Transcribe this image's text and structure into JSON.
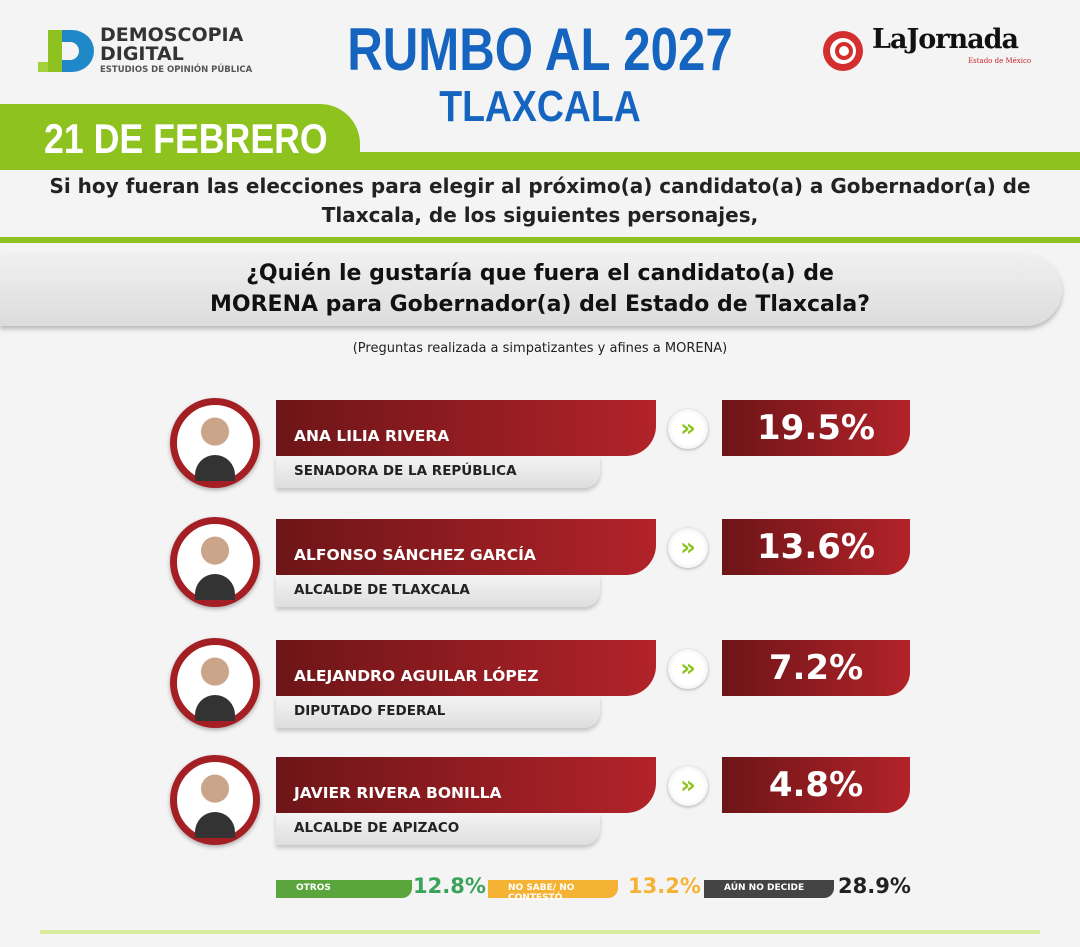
{
  "header": {
    "brand_line1": "DEMOSCOPIA",
    "brand_line2": "DIGITAL",
    "brand_tagline": "ESTUDIOS DE OPINIÓN PÚBLICA",
    "title": "RUMBO AL 2027",
    "subtitle": "TLAXCALA",
    "date": "21 DE FEBRERO",
    "partner_logo": "LaJornada",
    "partner_sub": "Estado de México"
  },
  "intro": "Si hoy fueran las elecciones para elegir al próximo(a) candidato(a) a Gobernador(a) de Tlaxcala, de los siguientes personajes,",
  "question": "¿Quién le gustaría que fuera el candidato(a) de MORENA para Gobernador(a) del Estado de Tlaxcala?",
  "note": "(Preguntas realizada a simpatizantes y afines a MORENA)",
  "colors": {
    "accent_green": "#8dc21f",
    "title_blue": "#1565c0",
    "bar_red": "#b22329"
  },
  "chart_data": {
    "type": "table",
    "categories": [
      "ANA LILIA RIVERA",
      "ALFONSO SÁNCHEZ GARCÍA",
      "ALEJANDRO AGUILAR LÓPEZ",
      "JAVIER RIVERA BONILLA"
    ],
    "roles": [
      "SENADORA DE LA REPÚBLICA",
      "ALCALDE DE TLAXCALA",
      "DIPUTADO FEDERAL",
      "ALCALDE DE APIZACO"
    ],
    "values": [
      19.5,
      13.6,
      7.2,
      4.8
    ],
    "labels": [
      "19.5%",
      "13.6%",
      "7.2%",
      "4.8%"
    ],
    "other": [
      {
        "label": "OTROS",
        "value": "12.8%",
        "color": "#5aa63c"
      },
      {
        "label": "NO SABE/ NO CONTESTÓ",
        "value": "13.2%",
        "color": "#f5b335"
      },
      {
        "label": "AÚN NO DECIDE",
        "value": "28.9%",
        "color": "#444444"
      }
    ]
  }
}
